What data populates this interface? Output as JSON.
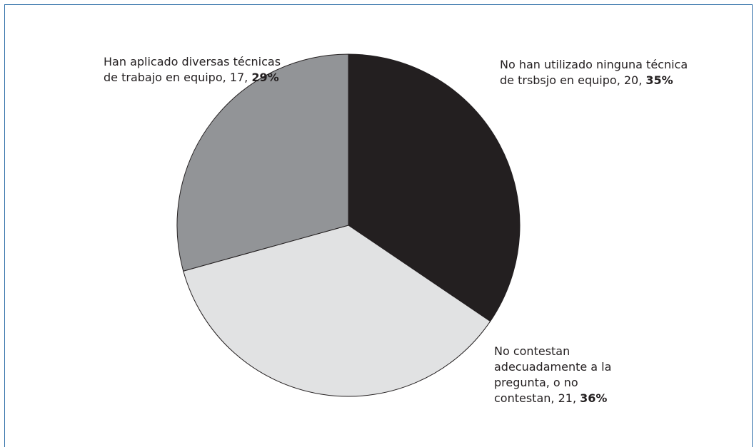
{
  "chart_data": {
    "type": "pie",
    "slices": [
      {
        "label": "No han utilizado ninguna técnica de trsbsjo en equipo,",
        "value": 20,
        "value_text": "20",
        "percent_text": "35%",
        "color": "#231f20"
      },
      {
        "label": "No contestan adecuadamente a la pregunta, o no contestan,",
        "value": 21,
        "value_text": "21",
        "percent_text": "36%",
        "color": "#e1e2e3"
      },
      {
        "label": "Han aplicado diversas técnicas de trabajo en equipo,",
        "value": 17,
        "value_text": "17",
        "percent_text": "29%",
        "color": "#929497"
      }
    ],
    "start_angle_deg": 0,
    "direction": "clockwise"
  }
}
